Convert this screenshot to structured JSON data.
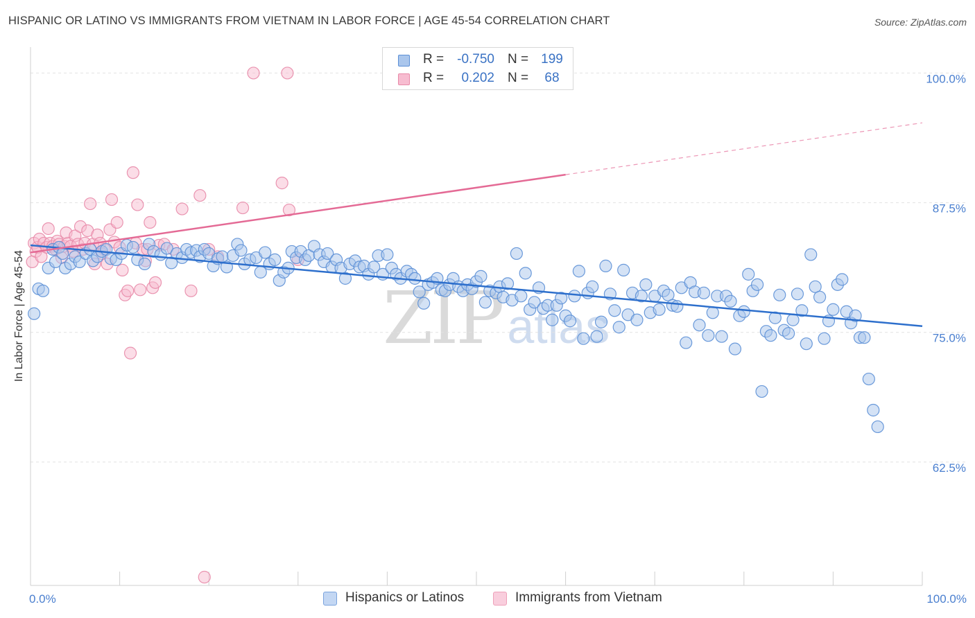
{
  "title": "HISPANIC OR LATINO VS IMMIGRANTS FROM VIETNAM IN LABOR FORCE | AGE 45-54 CORRELATION CHART",
  "source": "Source: ZipAtlas.com",
  "watermark": {
    "zip": "ZIP",
    "atlas": "atlas"
  },
  "legend_top": {
    "r_label": "R =",
    "n_label": "N =",
    "rows": [
      {
        "r": "-0.750",
        "n": "199"
      },
      {
        "r": "0.202",
        "n": "68"
      }
    ]
  },
  "colors": {
    "blue_fill": "#aac6ec",
    "blue_stroke": "#5b8fd6",
    "blue_line": "#2d6fcc",
    "pink_fill": "#f7bcd0",
    "pink_stroke": "#e88aa8",
    "pink_line": "#e46a95",
    "grid": "#e2e2e2",
    "tick_text": "#4a7fcf"
  },
  "chart_data": {
    "type": "scatter",
    "title": "HISPANIC OR LATINO VS IMMIGRANTS FROM VIETNAM IN LABOR FORCE | AGE 45-54 CORRELATION CHART",
    "xlabel": "",
    "ylabel": "In Labor Force | Age 45-54",
    "xlim": [
      0,
      100
    ],
    "ylim": [
      50.6,
      102.5
    ],
    "x_tick_labels": [
      "0.0%",
      "100.0%"
    ],
    "y_ticks": [
      62.5,
      75.0,
      87.5,
      100.0
    ],
    "y_tick_labels": [
      "62.5%",
      "75.0%",
      "87.5%",
      "100.0%"
    ],
    "grid": true,
    "series": [
      {
        "name": "Hispanics or Latinos",
        "r": -0.75,
        "n": 199,
        "trend": {
          "x": [
            0,
            100
          ],
          "y": [
            83.4,
            75.6
          ]
        },
        "points": [
          [
            0.4,
            76.8
          ],
          [
            0.9,
            79.2
          ],
          [
            1.4,
            79.0
          ],
          [
            2.0,
            81.2
          ],
          [
            2.5,
            83.0
          ],
          [
            2.8,
            81.8
          ],
          [
            3.2,
            83.2
          ],
          [
            3.6,
            82.6
          ],
          [
            3.9,
            81.2
          ],
          [
            4.5,
            81.6
          ],
          [
            5.0,
            82.3
          ],
          [
            5.5,
            81.8
          ],
          [
            6.2,
            82.6
          ],
          [
            6.7,
            83.0
          ],
          [
            7.0,
            81.9
          ],
          [
            7.5,
            82.3
          ],
          [
            8.0,
            82.8
          ],
          [
            8.5,
            83.0
          ],
          [
            9.0,
            82.1
          ],
          [
            9.6,
            82.0
          ],
          [
            10.2,
            82.6
          ],
          [
            10.8,
            83.4
          ],
          [
            11.5,
            83.2
          ],
          [
            12.0,
            82.0
          ],
          [
            12.8,
            81.6
          ],
          [
            13.3,
            83.5
          ],
          [
            13.8,
            82.8
          ],
          [
            14.6,
            82.5
          ],
          [
            15.3,
            83.1
          ],
          [
            15.8,
            81.7
          ],
          [
            16.4,
            82.6
          ],
          [
            17.0,
            82.2
          ],
          [
            17.5,
            83.0
          ],
          [
            18.0,
            82.7
          ],
          [
            18.6,
            82.9
          ],
          [
            19.0,
            82.3
          ],
          [
            19.5,
            83.0
          ],
          [
            20.0,
            82.6
          ],
          [
            20.5,
            81.4
          ],
          [
            21.0,
            82.1
          ],
          [
            21.5,
            82.3
          ],
          [
            22.0,
            81.3
          ],
          [
            22.7,
            82.4
          ],
          [
            23.2,
            83.5
          ],
          [
            23.6,
            82.9
          ],
          [
            24.0,
            81.6
          ],
          [
            24.6,
            82.0
          ],
          [
            25.3,
            82.2
          ],
          [
            25.8,
            80.8
          ],
          [
            26.3,
            82.7
          ],
          [
            26.8,
            81.6
          ],
          [
            27.4,
            82.0
          ],
          [
            27.9,
            80.0
          ],
          [
            28.4,
            80.8
          ],
          [
            28.9,
            81.2
          ],
          [
            29.3,
            82.8
          ],
          [
            29.8,
            82.2
          ],
          [
            30.3,
            82.8
          ],
          [
            30.8,
            82.0
          ],
          [
            31.2,
            82.4
          ],
          [
            31.8,
            83.3
          ],
          [
            32.4,
            82.5
          ],
          [
            32.9,
            81.8
          ],
          [
            33.3,
            82.6
          ],
          [
            33.8,
            81.3
          ],
          [
            34.3,
            82.0
          ],
          [
            34.8,
            81.2
          ],
          [
            35.3,
            80.2
          ],
          [
            35.8,
            81.6
          ],
          [
            36.4,
            81.9
          ],
          [
            36.9,
            81.3
          ],
          [
            37.4,
            81.4
          ],
          [
            37.9,
            80.6
          ],
          [
            38.5,
            81.3
          ],
          [
            39.0,
            82.4
          ],
          [
            39.5,
            80.6
          ],
          [
            40.0,
            82.5
          ],
          [
            40.5,
            81.2
          ],
          [
            41.0,
            80.6
          ],
          [
            41.5,
            80.2
          ],
          [
            42.2,
            80.9
          ],
          [
            42.7,
            80.6
          ],
          [
            43.1,
            80.2
          ],
          [
            43.6,
            78.9
          ],
          [
            44.1,
            77.8
          ],
          [
            44.6,
            79.6
          ],
          [
            45.1,
            79.8
          ],
          [
            45.6,
            80.2
          ],
          [
            46.1,
            79.1
          ],
          [
            46.5,
            79.0
          ],
          [
            47.0,
            79.6
          ],
          [
            47.4,
            80.2
          ],
          [
            48.0,
            79.4
          ],
          [
            48.5,
            79.0
          ],
          [
            49.0,
            79.6
          ],
          [
            49.5,
            79.2
          ],
          [
            50.0,
            79.9
          ],
          [
            50.5,
            80.4
          ],
          [
            51.0,
            77.9
          ],
          [
            51.5,
            79.0
          ],
          [
            52.2,
            78.8
          ],
          [
            52.6,
            79.4
          ],
          [
            53.0,
            78.4
          ],
          [
            53.5,
            79.7
          ],
          [
            54.0,
            78.1
          ],
          [
            54.5,
            82.6
          ],
          [
            55.0,
            78.5
          ],
          [
            55.5,
            80.7
          ],
          [
            56.0,
            77.2
          ],
          [
            56.5,
            77.9
          ],
          [
            57.0,
            79.3
          ],
          [
            57.5,
            77.3
          ],
          [
            58.0,
            77.6
          ],
          [
            58.5,
            76.2
          ],
          [
            59.0,
            77.6
          ],
          [
            59.5,
            78.3
          ],
          [
            60.0,
            76.6
          ],
          [
            60.5,
            76.1
          ],
          [
            61.0,
            78.5
          ],
          [
            61.5,
            80.9
          ],
          [
            62.0,
            74.4
          ],
          [
            62.5,
            78.8
          ],
          [
            63.0,
            79.4
          ],
          [
            63.5,
            74.6
          ],
          [
            64.0,
            76.0
          ],
          [
            64.5,
            81.4
          ],
          [
            65.0,
            78.7
          ],
          [
            65.5,
            77.1
          ],
          [
            66.0,
            75.5
          ],
          [
            66.5,
            81.0
          ],
          [
            67.0,
            76.7
          ],
          [
            67.5,
            78.8
          ],
          [
            68.0,
            76.2
          ],
          [
            68.5,
            78.5
          ],
          [
            69.0,
            79.6
          ],
          [
            69.5,
            76.9
          ],
          [
            70.0,
            78.5
          ],
          [
            70.5,
            77.2
          ],
          [
            71.0,
            79.0
          ],
          [
            71.5,
            78.6
          ],
          [
            72.0,
            77.6
          ],
          [
            72.5,
            77.5
          ],
          [
            73.0,
            79.3
          ],
          [
            73.5,
            74.0
          ],
          [
            74.0,
            79.8
          ],
          [
            74.5,
            78.9
          ],
          [
            75.0,
            75.7
          ],
          [
            75.5,
            78.8
          ],
          [
            76.0,
            74.7
          ],
          [
            76.5,
            76.9
          ],
          [
            77.0,
            78.5
          ],
          [
            77.5,
            74.6
          ],
          [
            78.0,
            78.5
          ],
          [
            78.5,
            78.0
          ],
          [
            79.0,
            73.4
          ],
          [
            79.5,
            76.6
          ],
          [
            80.0,
            77.0
          ],
          [
            80.5,
            80.6
          ],
          [
            81.0,
            79.0
          ],
          [
            81.5,
            79.6
          ],
          [
            82.0,
            69.3
          ],
          [
            82.5,
            75.1
          ],
          [
            83.0,
            74.7
          ],
          [
            83.5,
            76.4
          ],
          [
            84.0,
            78.6
          ],
          [
            84.5,
            75.2
          ],
          [
            85.0,
            74.9
          ],
          [
            85.5,
            76.2
          ],
          [
            86.0,
            78.7
          ],
          [
            86.5,
            77.1
          ],
          [
            87.0,
            73.9
          ],
          [
            87.5,
            82.5
          ],
          [
            88.0,
            79.4
          ],
          [
            88.5,
            78.4
          ],
          [
            89.0,
            74.4
          ],
          [
            89.5,
            76.1
          ],
          [
            90.0,
            77.2
          ],
          [
            90.5,
            79.6
          ],
          [
            91.0,
            80.1
          ],
          [
            91.5,
            77.0
          ],
          [
            92.0,
            75.9
          ],
          [
            92.5,
            76.6
          ],
          [
            93.0,
            74.5
          ],
          [
            93.5,
            74.5
          ],
          [
            94.0,
            70.5
          ],
          [
            94.5,
            67.5
          ],
          [
            95.0,
            65.9
          ]
        ]
      },
      {
        "name": "Immigrants from Vietnam",
        "r": 0.202,
        "n": 68,
        "trend": {
          "x": [
            0,
            60
          ],
          "y": [
            82.7,
            90.2
          ],
          "extended": {
            "x": [
              60,
              100
            ],
            "y": [
              90.2,
              95.2
            ]
          }
        },
        "points": [
          [
            0.2,
            81.8
          ],
          [
            0.4,
            83.6
          ],
          [
            0.6,
            82.8
          ],
          [
            0.8,
            83.2
          ],
          [
            1.0,
            84.0
          ],
          [
            1.2,
            82.3
          ],
          [
            1.5,
            83.6
          ],
          [
            1.8,
            83.2
          ],
          [
            2.0,
            85.0
          ],
          [
            2.2,
            83.6
          ],
          [
            2.5,
            83.3
          ],
          [
            2.8,
            83.0
          ],
          [
            3.0,
            83.8
          ],
          [
            3.2,
            83.5
          ],
          [
            3.5,
            82.2
          ],
          [
            3.8,
            83.3
          ],
          [
            4.0,
            84.6
          ],
          [
            4.2,
            83.6
          ],
          [
            4.5,
            83.3
          ],
          [
            4.8,
            82.8
          ],
          [
            5.0,
            84.3
          ],
          [
            5.3,
            83.5
          ],
          [
            5.6,
            85.2
          ],
          [
            5.9,
            83.0
          ],
          [
            6.1,
            83.6
          ],
          [
            6.4,
            84.8
          ],
          [
            6.7,
            87.4
          ],
          [
            7.0,
            83.5
          ],
          [
            7.2,
            81.6
          ],
          [
            7.5,
            84.4
          ],
          [
            7.8,
            83.6
          ],
          [
            8.0,
            82.6
          ],
          [
            8.3,
            83.0
          ],
          [
            8.6,
            81.6
          ],
          [
            8.9,
            84.9
          ],
          [
            9.1,
            87.8
          ],
          [
            9.4,
            83.7
          ],
          [
            9.7,
            85.6
          ],
          [
            10.0,
            83.2
          ],
          [
            10.3,
            81.0
          ],
          [
            10.6,
            78.6
          ],
          [
            10.9,
            79.0
          ],
          [
            11.2,
            73.0
          ],
          [
            11.5,
            90.4
          ],
          [
            11.8,
            83.6
          ],
          [
            12.0,
            87.3
          ],
          [
            12.3,
            79.1
          ],
          [
            12.6,
            83.0
          ],
          [
            12.9,
            81.9
          ],
          [
            13.1,
            83.0
          ],
          [
            13.4,
            85.6
          ],
          [
            13.7,
            79.3
          ],
          [
            14.0,
            79.8
          ],
          [
            14.4,
            83.4
          ],
          [
            15.0,
            83.5
          ],
          [
            16.0,
            83.0
          ],
          [
            17.0,
            86.9
          ],
          [
            18.0,
            79.0
          ],
          [
            19.0,
            88.2
          ],
          [
            19.5,
            51.4
          ],
          [
            20.0,
            83.0
          ],
          [
            21.0,
            82.3
          ],
          [
            23.8,
            87.0
          ],
          [
            25.0,
            100.0
          ],
          [
            28.8,
            100.0
          ],
          [
            28.2,
            89.4
          ],
          [
            29.0,
            86.8
          ],
          [
            30.0,
            82.0
          ]
        ]
      }
    ]
  },
  "legend_bottom": [
    {
      "label": "Hispanics or Latinos"
    },
    {
      "label": "Immigrants from Vietnam"
    }
  ]
}
